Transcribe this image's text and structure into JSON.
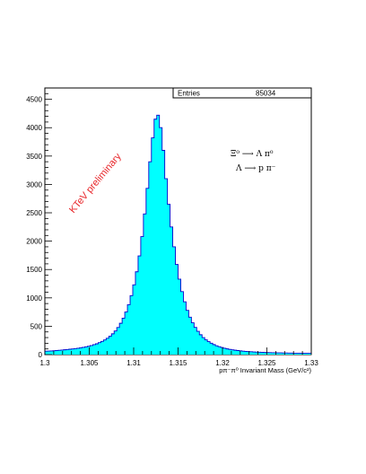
{
  "chart_data": {
    "type": "histogram",
    "xlabel": "pπ⁻π⁰ Invariant Mass (GeV/c²)",
    "xlim": [
      1.3,
      1.33
    ],
    "ylim": [
      0,
      4700
    ],
    "x_ticks": [
      "1.3",
      "1.305",
      "1.31",
      "1.315",
      "1.32",
      "1.325",
      "1.33"
    ],
    "y_ticks": [
      "0",
      "500",
      "1000",
      "1500",
      "2000",
      "2500",
      "3000",
      "3500",
      "4000",
      "4500"
    ],
    "fill_color": "#00ffff",
    "line_color": "#0000cc",
    "bins": {
      "low": 1.3,
      "width": 0.0003,
      "values": [
        60,
        62,
        65,
        68,
        72,
        76,
        80,
        85,
        90,
        95,
        100,
        105,
        112,
        120,
        128,
        138,
        148,
        160,
        175,
        190,
        210,
        232,
        258,
        288,
        324,
        366,
        416,
        478,
        552,
        642,
        750,
        880,
        1040,
        1230,
        1460,
        1740,
        2080,
        2480,
        2930,
        3400,
        3820,
        4150,
        4220,
        4000,
        3600,
        3100,
        2650,
        2250,
        1900,
        1590,
        1330,
        1110,
        930,
        780,
        660,
        560,
        480,
        410,
        350,
        300,
        260,
        228,
        200,
        176,
        156,
        139,
        125,
        112,
        101,
        92,
        84,
        77,
        71,
        66,
        61,
        57,
        53,
        50,
        47,
        44,
        42,
        40,
        38,
        36,
        34,
        33,
        32,
        31,
        30,
        29,
        28,
        27,
        26,
        25,
        25,
        24,
        24,
        23,
        23,
        22
      ]
    },
    "stats": {
      "label": "Entries",
      "value": "85034"
    },
    "annotations": {
      "watermark": "KTeV preliminary",
      "decay_line1": "Ξ⁰ ⟶ Λ π⁰",
      "decay_line2": "Λ ⟶ p π⁻"
    }
  }
}
